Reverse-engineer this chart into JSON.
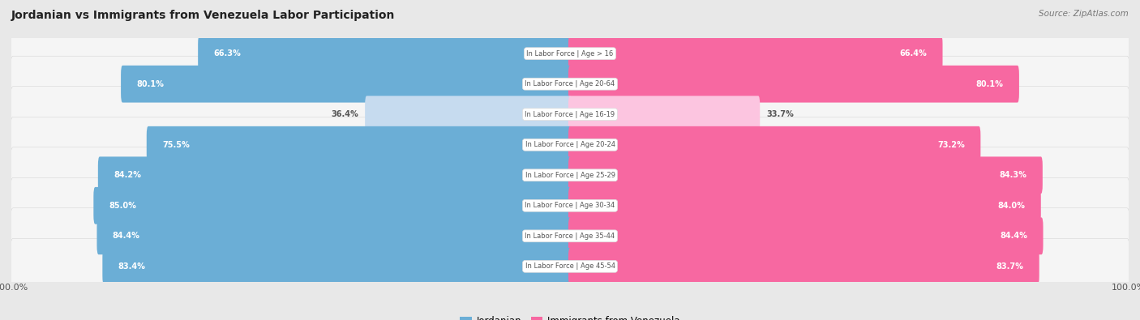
{
  "title": "Jordanian vs Immigrants from Venezuela Labor Participation",
  "source": "Source: ZipAtlas.com",
  "categories": [
    "In Labor Force | Age > 16",
    "In Labor Force | Age 20-64",
    "In Labor Force | Age 16-19",
    "In Labor Force | Age 20-24",
    "In Labor Force | Age 25-29",
    "In Labor Force | Age 30-34",
    "In Labor Force | Age 35-44",
    "In Labor Force | Age 45-54"
  ],
  "jordanian": [
    66.3,
    80.1,
    36.4,
    75.5,
    84.2,
    85.0,
    84.4,
    83.4
  ],
  "venezuela": [
    66.4,
    80.1,
    33.7,
    73.2,
    84.3,
    84.0,
    84.4,
    83.7
  ],
  "jordanian_color": "#6baed6",
  "jordanian_color_light": "#c6dbef",
  "venezuela_color": "#f768a1",
  "venezuela_color_light": "#fcc5e0",
  "background_color": "#e8e8e8",
  "row_bg_color": "#f5f5f5",
  "max_value": 100.0,
  "legend_jordanian": "Jordanian",
  "legend_venezuela": "Immigrants from Venezuela",
  "center_label_bg": "#ffffff",
  "center_label_color": "#555555",
  "value_label_color_dark": "#555555"
}
